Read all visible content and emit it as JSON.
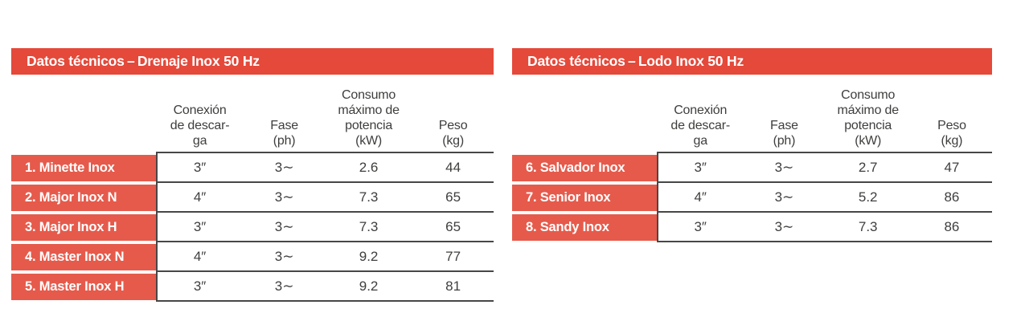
{
  "colors": {
    "banner_red": "#E4493A",
    "row_red": "#E65A4B",
    "line": "#474747",
    "text": "#3E3E3D",
    "on_red": "#FFFFFF",
    "bg": "#FFFFFF"
  },
  "headers": {
    "connection": {
      "l1": "Conexión",
      "l2": "de descar-",
      "l3": "ga"
    },
    "phase": {
      "l1": "Fase",
      "l2": "(ph)"
    },
    "power": {
      "l1": "Consumo",
      "l2": "máximo de",
      "l3": "potencia",
      "l4": "(kW)"
    },
    "weight": {
      "l1": "Peso",
      "l2": "(kg)"
    }
  },
  "tables": [
    {
      "title": "Datos técnicos – Drenaje Inox 50 Hz",
      "rows": [
        {
          "label": "1. Minette Inox",
          "connection": "3″",
          "phase": "3∼",
          "power": "2.6",
          "weight": "44"
        },
        {
          "label": "2. Major Inox N",
          "connection": "4″",
          "phase": "3∼",
          "power": "7.3",
          "weight": "65"
        },
        {
          "label": "3. Major Inox H",
          "connection": "3″",
          "phase": "3∼",
          "power": "7.3",
          "weight": "65"
        },
        {
          "label": "4. Master Inox N",
          "connection": "4″",
          "phase": "3∼",
          "power": "9.2",
          "weight": "77"
        },
        {
          "label": "5. Master Inox H",
          "connection": "3″",
          "phase": "3∼",
          "power": "9.2",
          "weight": "81"
        }
      ]
    },
    {
      "title": "Datos técnicos – Lodo Inox 50 Hz",
      "rows": [
        {
          "label": "6. Salvador Inox",
          "connection": "3″",
          "phase": "3∼",
          "power": "2.7",
          "weight": "47"
        },
        {
          "label": "7. Senior Inox",
          "connection": "4″",
          "phase": "3∼",
          "power": "5.2",
          "weight": "86"
        },
        {
          "label": "8. Sandy Inox",
          "connection": "3″",
          "phase": "3∼",
          "power": "7.3",
          "weight": "86"
        }
      ]
    }
  ]
}
